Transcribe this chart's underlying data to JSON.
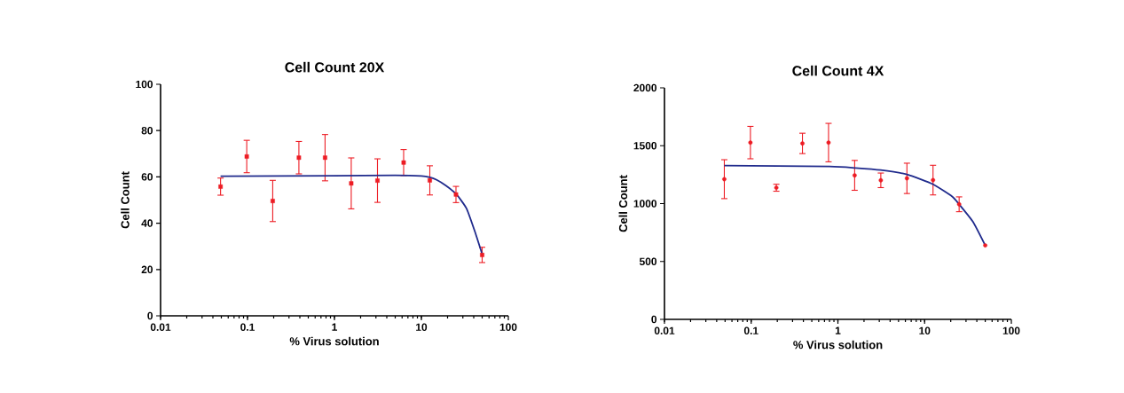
{
  "chart_data": [
    {
      "type": "scatter",
      "title": "Cell Count 20X",
      "xlabel": "% Virus solution",
      "ylabel": "Cell Count",
      "log": "x",
      "xlim": [
        0.01,
        100
      ],
      "xticks": [
        0.01,
        0.1,
        1,
        10,
        100
      ],
      "ylim": [
        0,
        100
      ],
      "yticks": [
        0,
        20,
        40,
        60,
        80,
        100
      ],
      "series": [
        {
          "color": "#ed1c24",
          "marker": "square",
          "x": [
            0.049,
            0.098,
            0.195,
            0.39,
            0.78,
            1.56,
            3.125,
            6.25,
            12.5,
            25,
            50
          ],
          "values": [
            55.8,
            68.8,
            49.6,
            68.3,
            68.3,
            57.2,
            58.4,
            66.2,
            58.5,
            52.4,
            26.3
          ],
          "errors": [
            3.7,
            7,
            8.9,
            7,
            10,
            11,
            9.4,
            5.6,
            6.3,
            3.5,
            3.3
          ]
        },
        {
          "type": "line",
          "color": "#1f2a8c",
          "marker": "none",
          "line_style": "solid",
          "x": [
            0.049,
            1,
            5,
            10,
            12.5,
            15,
            19,
            25,
            33,
            41.5,
            50
          ],
          "values": [
            60.3,
            60.5,
            60.7,
            60.4,
            59.8,
            58.7,
            56.3,
            52.7,
            46.4,
            36.1,
            26.6
          ]
        }
      ]
    },
    {
      "type": "scatter",
      "title": "Cell Count 4X",
      "xlabel": "% Virus solution",
      "ylabel": "Cell Count",
      "log": "x",
      "xlim": [
        0.01,
        100
      ],
      "xticks": [
        0.01,
        0.1,
        1,
        10,
        100
      ],
      "ylim": [
        0,
        2000
      ],
      "yticks": [
        0,
        500,
        1000,
        1500,
        2000
      ],
      "series": [
        {
          "color": "#ed1c24",
          "marker": "circle",
          "x": [
            0.049,
            0.098,
            0.195,
            0.39,
            0.78,
            1.56,
            3.125,
            6.25,
            12.5,
            25,
            50
          ],
          "values": [
            1211,
            1527,
            1137,
            1520,
            1527,
            1244,
            1201,
            1218,
            1203,
            994,
            639
          ],
          "errors": [
            168,
            140,
            30,
            88,
            166,
            129,
            63,
            131,
            128,
            64,
            null
          ]
        },
        {
          "type": "line",
          "color": "#1f2a8c",
          "marker": "none",
          "line_style": "solid",
          "x": [
            0.049,
            0.8,
            1.6,
            3.1,
            6.25,
            12.5,
            20.9,
            25,
            36.1,
            50
          ],
          "values": [
            1328,
            1321,
            1308,
            1290,
            1252,
            1167,
            1060,
            994,
            843,
            639
          ]
        }
      ]
    }
  ]
}
